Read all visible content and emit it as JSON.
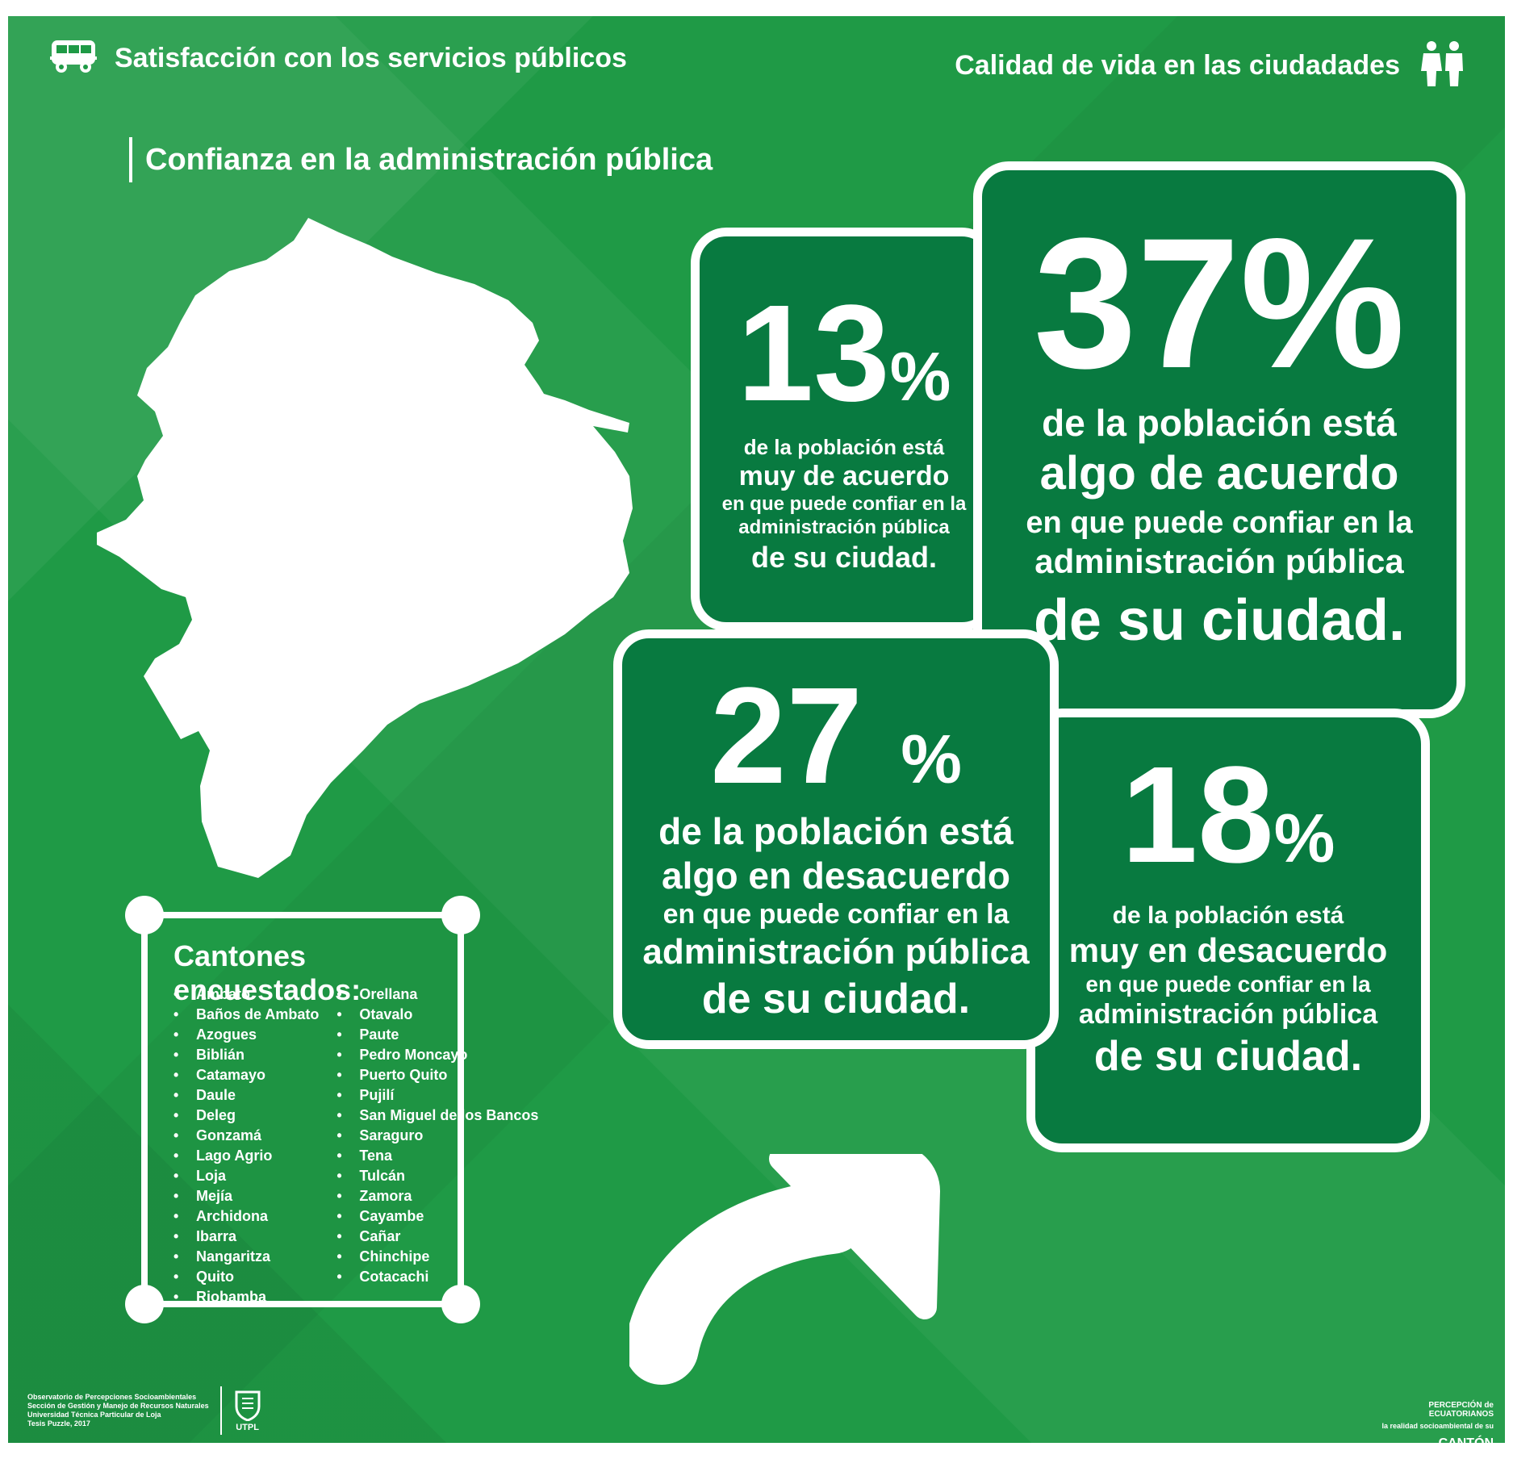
{
  "header": {
    "left_title": "Satisfacción con los servicios públicos",
    "right_title": "Calidad de vida en las ciudadades",
    "subtitle": "Confianza en la administración pública"
  },
  "cards": {
    "muy_acuerdo": {
      "value": "13",
      "unit": "%",
      "line1": "de la población está",
      "line2": "muy de acuerdo",
      "line3": "en que puede confiar en la",
      "line4": "administración pública",
      "line5": "de su ciudad."
    },
    "algo_acuerdo": {
      "value": "37",
      "unit": "%",
      "line1": "de la población está",
      "line2": "algo de acuerdo",
      "line3": "en que puede confiar en la",
      "line4": "administración pública",
      "line5": "de su ciudad."
    },
    "algo_desacuerdo": {
      "value": "27",
      "unit": "%",
      "line1": "de la población está",
      "line2": "algo en desacuerdo",
      "line3": "en que puede confiar en la",
      "line4": "administración pública",
      "line5": "de su ciudad."
    },
    "muy_desacuerdo": {
      "value": "18",
      "unit": "%",
      "line1": "de la población está",
      "line2": "muy en desacuerdo",
      "line3": "en que puede confiar en la",
      "line4": "administración pública",
      "line5": "de su ciudad."
    }
  },
  "cantones": {
    "title": "Cantones encuestados:",
    "col1": [
      "Ambato",
      "Baños de Ambato",
      "Azogues",
      "Biblián",
      "Catamayo",
      "Daule",
      "Deleg",
      "Gonzamá",
      "Lago Agrio",
      "Loja",
      "Mejía",
      "Archidona",
      "Ibarra",
      "Nangaritza",
      "Quito",
      "Riobamba"
    ],
    "col2": [
      "Orellana",
      "Otavalo",
      "Paute",
      "Pedro Moncayo",
      "Puerto Quito",
      "Pujilí",
      "San Miguel de los Bancos",
      "Saraguro",
      "Tena",
      "Tulcán",
      "Zamora",
      "Cayambe",
      "Cañar",
      "Chinchipe",
      "Cotacachi"
    ]
  },
  "footer": {
    "info": [
      "Observatorio de Percepciones Socioambientales",
      "Sección de Gestión y Manejo de Recursos Naturales",
      "Universidad Técnica Particular de Loja",
      "Tesis Puzzle, 2017"
    ],
    "logo_text": "UTPL",
    "brand_line1": "PERCEPCIÓN de ECUATORIANOS",
    "brand_line2": "la realidad socioambiental de su",
    "brand_line3": "CANTÓN"
  },
  "icons": {
    "bus": "bus-icon",
    "people": "people-icon",
    "map": "ecuador-map-icon",
    "arrow": "curved-arrow-icon",
    "seal": "university-seal-icon"
  },
  "colors": {
    "background": "#1f9a46",
    "card": "#087a40",
    "foreground": "#ffffff"
  }
}
